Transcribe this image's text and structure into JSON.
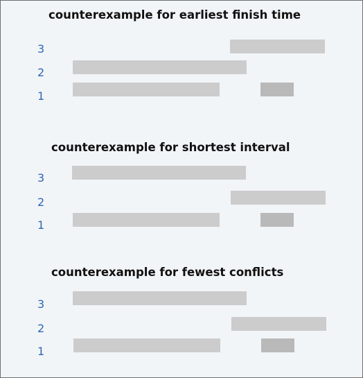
{
  "panels": [
    {
      "title": "counterexample for earliest finish time",
      "rows": [
        {
          "label": "3",
          "intervals": [
            {
              "start": 0.67,
              "end": 0.96
            }
          ]
        },
        {
          "label": "2",
          "intervals": [
            {
              "start": 0.0,
              "end": 0.7
            }
          ]
        },
        {
          "label": "1",
          "intervals": [
            {
              "start": 0.0,
              "end": 0.59
            },
            {
              "start": 0.75,
              "end": 0.89,
              "shade": "dark"
            }
          ]
        }
      ]
    },
    {
      "title": "counterexample for shortest interval",
      "rows": [
        {
          "label": "3",
          "intervals": [
            {
              "start": 0.0,
              "end": 0.7
            }
          ]
        },
        {
          "label": "2",
          "intervals": [
            {
              "start": 0.64,
              "end": 1.0
            }
          ]
        },
        {
          "label": "1",
          "intervals": [
            {
              "start": 0.0,
              "end": 0.59
            },
            {
              "start": 0.75,
              "end": 0.89,
              "shade": "dark"
            }
          ]
        }
      ]
    },
    {
      "title": "counterexample for fewest conflicts",
      "rows": [
        {
          "label": "3",
          "intervals": [
            {
              "start": 0.0,
              "end": 0.7
            }
          ]
        },
        {
          "label": "2",
          "intervals": [
            {
              "start": 0.64,
              "end": 1.0
            }
          ]
        },
        {
          "label": "1",
          "intervals": [
            {
              "start": 0.0,
              "end": 0.59
            },
            {
              "start": 0.75,
              "end": 0.89,
              "shade": "dark"
            }
          ]
        }
      ]
    }
  ]
}
